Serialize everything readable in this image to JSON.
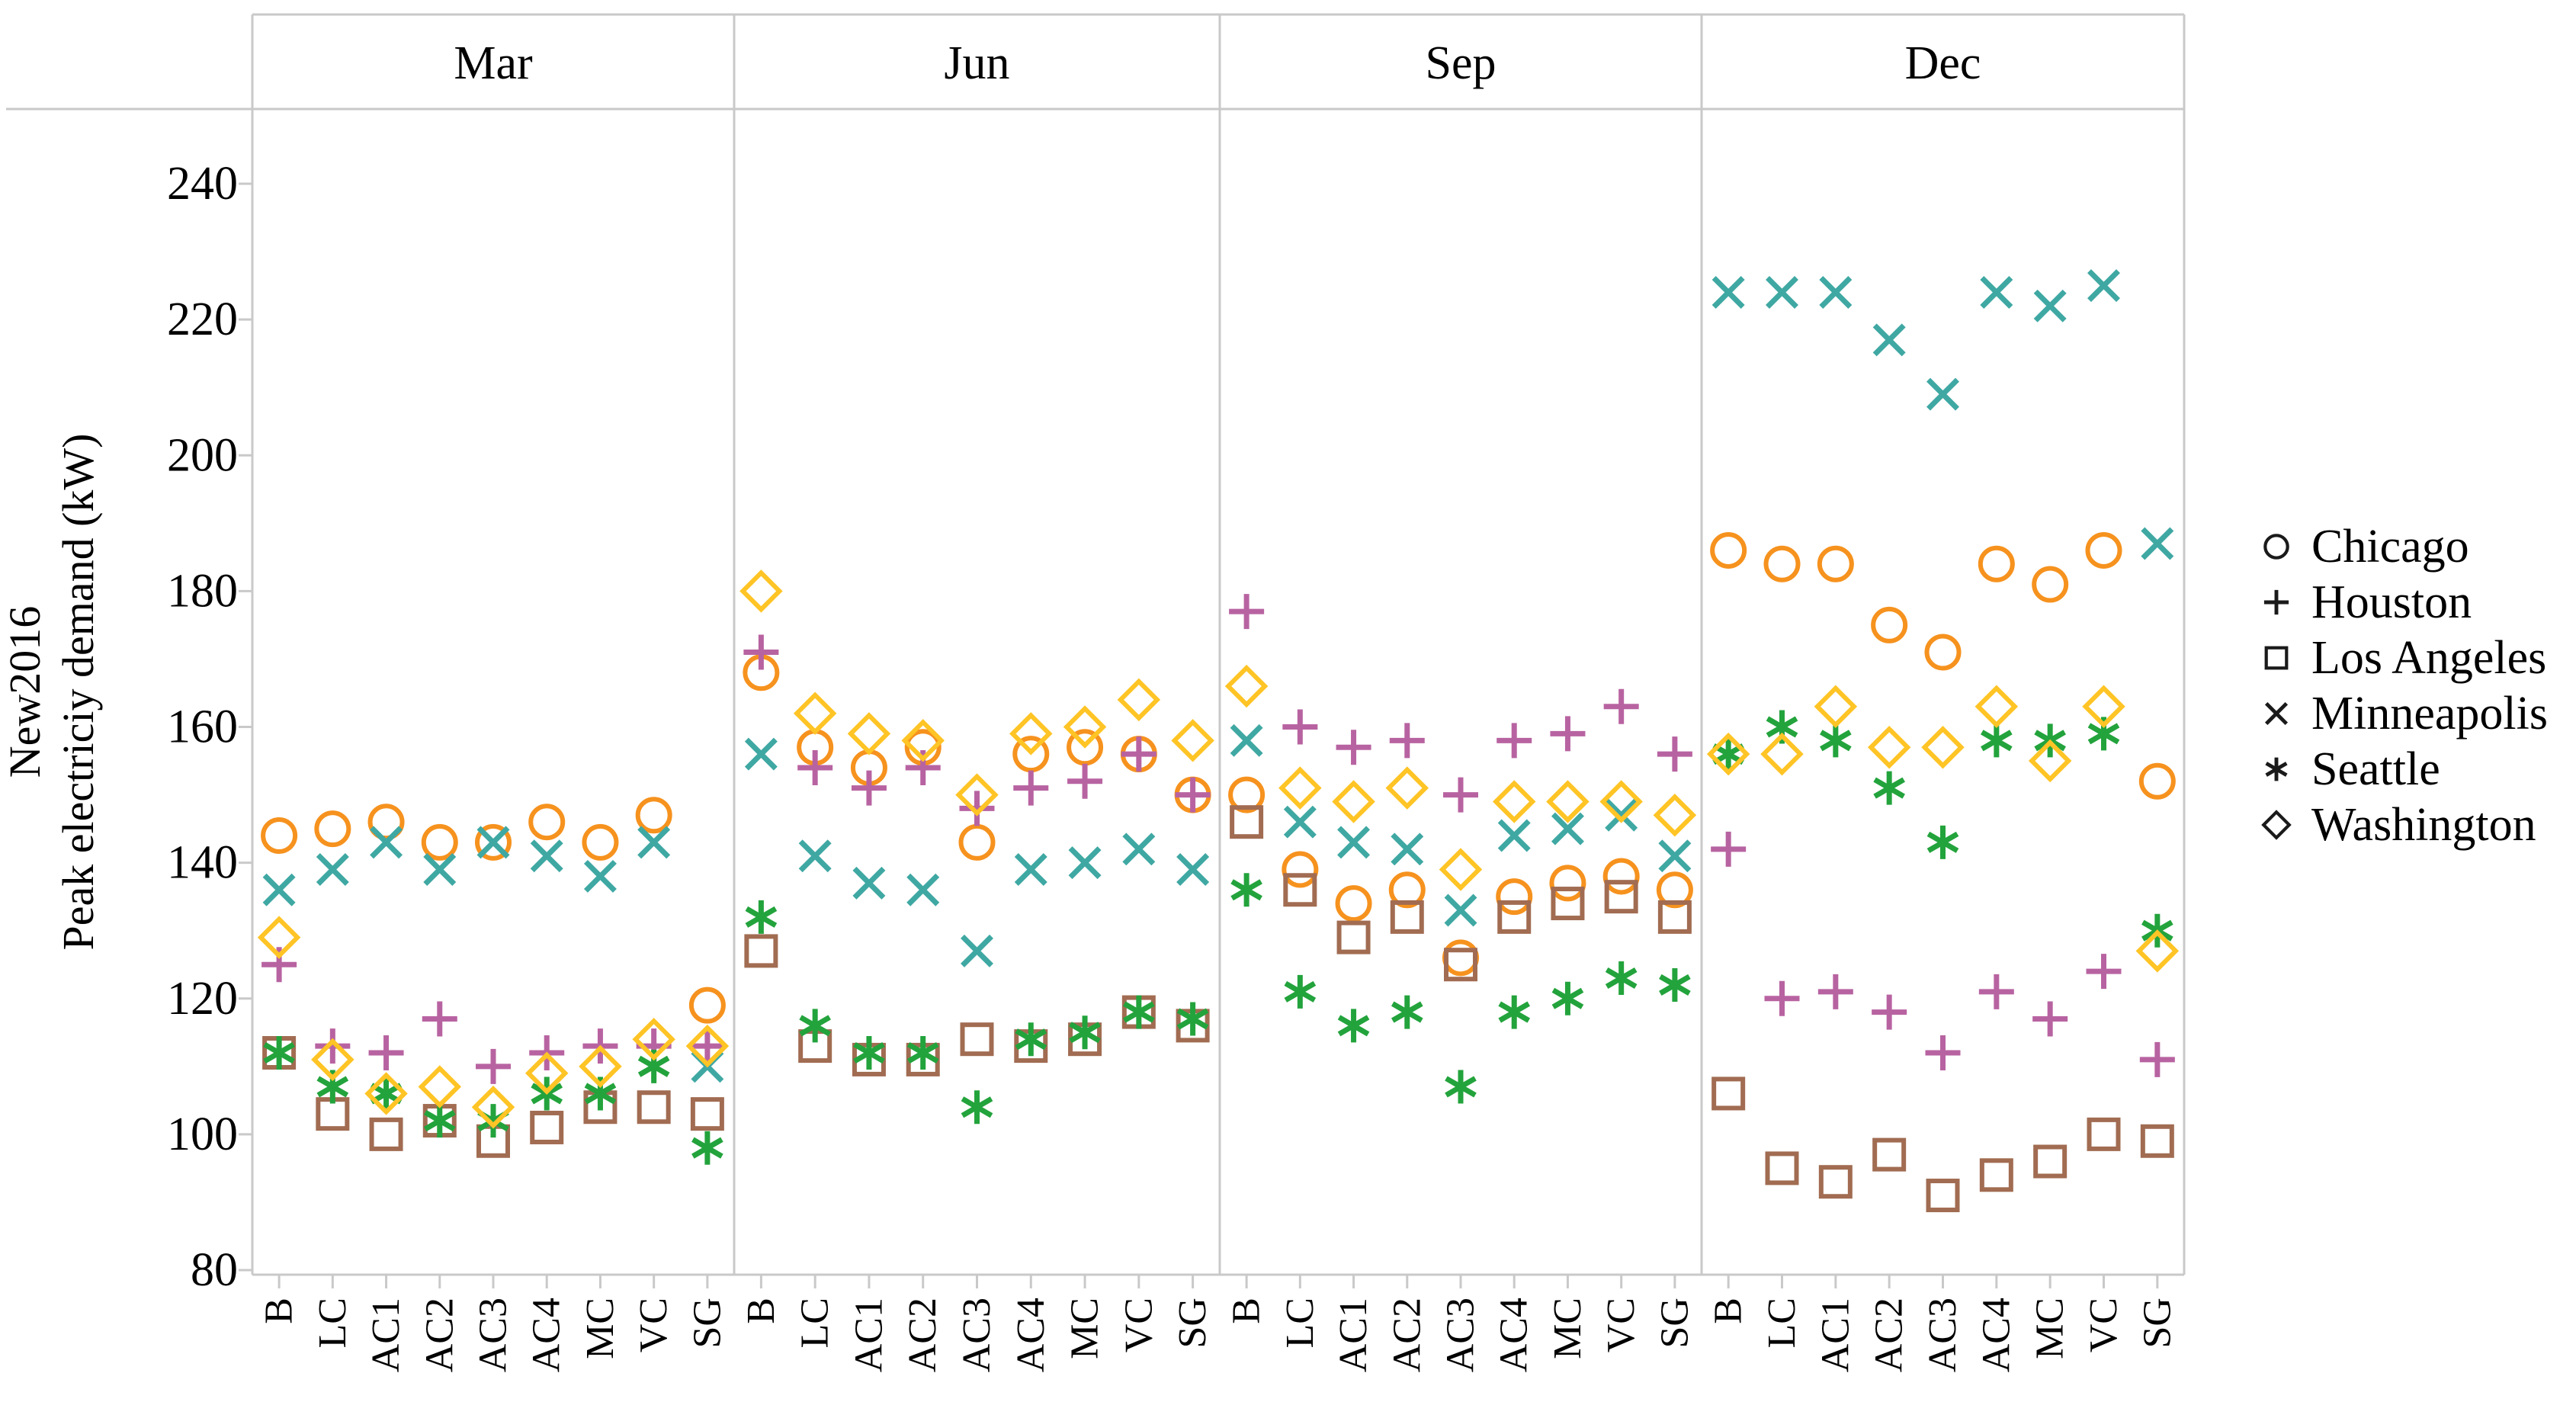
{
  "figure_title": "",
  "axis": {
    "y_title_line1": "New2016",
    "y_title_line2": "Peak electriciy demand (kW)",
    "y_ticks": [
      80,
      100,
      120,
      140,
      160,
      180,
      200,
      220,
      240
    ],
    "y_range": [
      80,
      240
    ]
  },
  "chart_data": {
    "type": "scatter",
    "facets": [
      "Mar",
      "Jun",
      "Sep",
      "Dec"
    ],
    "categories": [
      "B",
      "LC",
      "AC1",
      "AC2",
      "AC3",
      "AC4",
      "MC",
      "VC",
      "SG"
    ],
    "ylabel": "Peak electriciy demand (kW)",
    "ylabel_prefix": "New2016",
    "yticks": [
      80,
      100,
      120,
      140,
      160,
      180,
      200,
      220,
      240
    ],
    "ylim": [
      80,
      240
    ],
    "grid": false,
    "legend_position": "right",
    "series": [
      {
        "name": "Chicago",
        "symbol": "circle",
        "color": "#F6921E",
        "values": {
          "Mar": [
            144,
            145,
            146,
            143,
            143,
            146,
            143,
            147,
            119
          ],
          "Jun": [
            168,
            157,
            154,
            157,
            143,
            156,
            157,
            156,
            150
          ],
          "Sep": [
            150,
            139,
            134,
            136,
            126,
            135,
            137,
            138,
            136
          ],
          "Dec": [
            186,
            184,
            184,
            175,
            171,
            184,
            181,
            186,
            152
          ]
        }
      },
      {
        "name": "Houston",
        "symbol": "plus",
        "color": "#B863A1",
        "values": {
          "Mar": [
            125,
            113,
            112,
            117,
            110,
            112,
            113,
            113,
            113
          ],
          "Jun": [
            171,
            154,
            151,
            154,
            148,
            151,
            152,
            156,
            150
          ],
          "Sep": [
            177,
            160,
            157,
            158,
            150,
            158,
            159,
            163,
            156
          ],
          "Dec": [
            142,
            120,
            121,
            118,
            112,
            121,
            117,
            124,
            111
          ]
        }
      },
      {
        "name": "Los Angeles",
        "symbol": "square",
        "color": "#A16C52",
        "values": {
          "Mar": [
            112,
            103,
            100,
            102,
            99,
            101,
            104,
            104,
            103
          ],
          "Jun": [
            127,
            113,
            111,
            111,
            114,
            113,
            114,
            118,
            116
          ],
          "Sep": [
            146,
            136,
            129,
            132,
            125,
            132,
            134,
            135,
            132
          ],
          "Dec": [
            106,
            95,
            93,
            97,
            91,
            94,
            96,
            100,
            99
          ]
        }
      },
      {
        "name": "Minneapolis",
        "symbol": "x",
        "color": "#3FA8A3",
        "values": {
          "Mar": [
            136,
            139,
            143,
            139,
            143,
            141,
            138,
            143,
            110
          ],
          "Jun": [
            156,
            141,
            137,
            136,
            127,
            139,
            140,
            142,
            139
          ],
          "Sep": [
            158,
            146,
            143,
            142,
            133,
            144,
            145,
            147,
            141
          ],
          "Dec": [
            224,
            224,
            224,
            217,
            209,
            224,
            222,
            225,
            187
          ]
        }
      },
      {
        "name": "Seattle",
        "symbol": "asterisk",
        "color": "#23A33C",
        "values": {
          "Mar": [
            112,
            107,
            106,
            102,
            102,
            106,
            106,
            110,
            98
          ],
          "Jun": [
            132,
            116,
            112,
            112,
            104,
            114,
            115,
            118,
            117
          ],
          "Sep": [
            136,
            121,
            116,
            118,
            107,
            118,
            120,
            123,
            122
          ],
          "Dec": [
            156,
            160,
            158,
            151,
            143,
            158,
            158,
            159,
            130
          ]
        }
      },
      {
        "name": "Washington",
        "symbol": "diamond",
        "color": "#FFC425",
        "values": {
          "Mar": [
            129,
            111,
            106,
            107,
            104,
            109,
            110,
            114,
            113
          ],
          "Jun": [
            180,
            162,
            159,
            158,
            150,
            159,
            160,
            164,
            158
          ],
          "Sep": [
            166,
            151,
            149,
            151,
            139,
            149,
            149,
            149,
            147
          ],
          "Dec": [
            156,
            156,
            163,
            157,
            157,
            163,
            155,
            163,
            127
          ]
        }
      }
    ]
  },
  "style": {
    "border_color": "#c9c9c9",
    "legend_text_color": "#000000",
    "legend_symbol_color": "#1a1a1a"
  }
}
